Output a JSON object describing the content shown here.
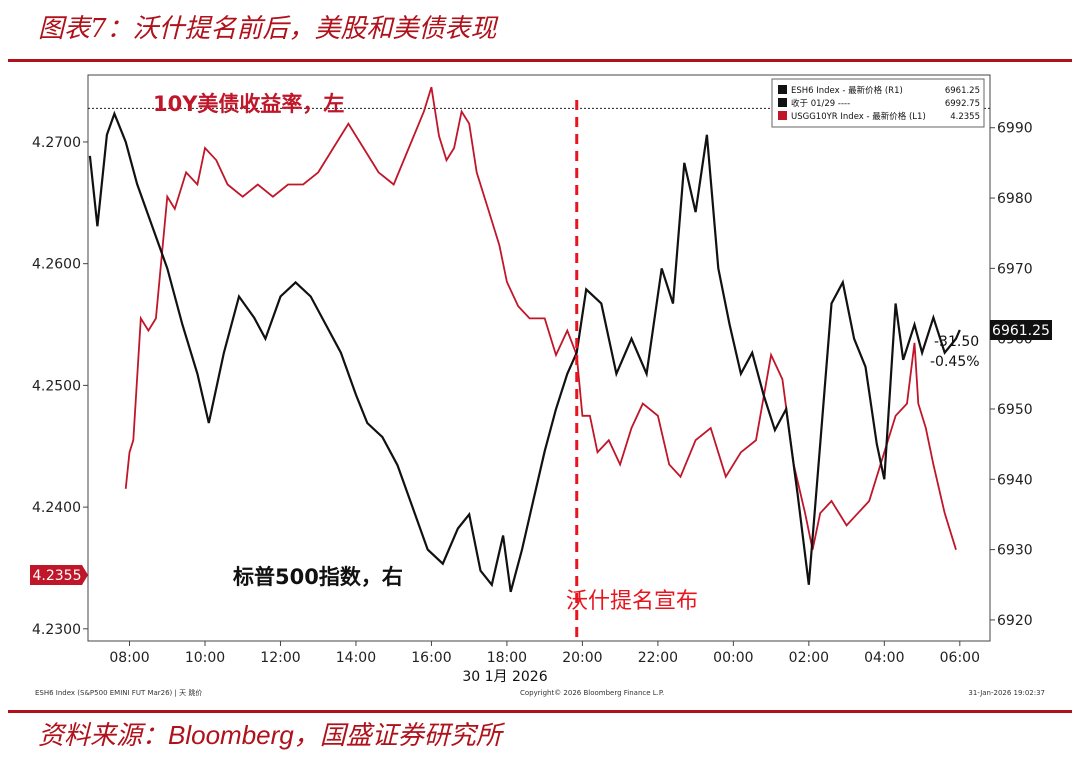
{
  "header": {
    "title": "图表7：沃什提名前后，美股和美债表现"
  },
  "footer": {
    "source_prefix": "资料来源：",
    "source_brand": "Bloomberg",
    "source_suffix": "，国盛证券研究所",
    "bloomberg_left": "ESH6 Index (S&P500 EMINI FUT Mar26) | 天 跳价",
    "bloomberg_mid": "Copyright© 2026 Bloomberg Finance L.P.",
    "bloomberg_right": "31-Jan-2026 19:02:37"
  },
  "legend": {
    "rows": [
      {
        "label": "ESH6 Index - 最新价格 (R1)",
        "value": "6961.25",
        "color": "#111111"
      },
      {
        "label": "收于 01/29 ----",
        "value": "6992.75",
        "color": "#111111"
      },
      {
        "label": "USGG10YR Index - 最新价格 (L1)",
        "value": "4.2355",
        "color": "#c0162a"
      }
    ]
  },
  "annotations": {
    "yield_label": "10Y美债收益率，左",
    "spx_label": "标普500指数，右",
    "event_label": "沃什提名宣布",
    "change_points": "-31.50",
    "change_pct": "-0.45%",
    "last_right": "6961.25",
    "last_left": "4.2355"
  },
  "colors": {
    "yield": "#c0162a",
    "spx": "#111111",
    "event": "#e8141e",
    "title": "#b0121b"
  },
  "chart_data": {
    "type": "line",
    "title": "",
    "xlabel": "30 1月 2026",
    "x_ticks": [
      "08:00",
      "10:00",
      "12:00",
      "14:00",
      "16:00",
      "18:00",
      "20:00",
      "22:00",
      "00:00",
      "02:00",
      "04:00",
      "06:00"
    ],
    "x_tick_hours": [
      8,
      10,
      12,
      14,
      16,
      18,
      20,
      22,
      24,
      26,
      28,
      30
    ],
    "x_range_hours": [
      6.9,
      30.8
    ],
    "event_hour": 19.85,
    "y_left": {
      "label": "",
      "range": [
        4.229,
        4.2755
      ],
      "ticks": [
        "4.2300",
        "4.2400",
        "4.2500",
        "4.2600",
        "4.2700"
      ],
      "tick_values": [
        4.23,
        4.24,
        4.25,
        4.26,
        4.27
      ]
    },
    "y_right": {
      "label": "",
      "range": [
        6917,
        6997.5
      ],
      "ticks": [
        "6920",
        "6930",
        "6940",
        "6950",
        "6960",
        "6970",
        "6980",
        "6990"
      ],
      "tick_values": [
        6920,
        6930,
        6940,
        6950,
        6960,
        6970,
        6980,
        6990
      ],
      "prev_close": 6992.75
    },
    "series": [
      {
        "name": "USGG10YR Index",
        "axis": "left",
        "x": [
          7.9,
          8.0,
          8.1,
          8.3,
          8.5,
          8.7,
          9.0,
          9.2,
          9.5,
          9.8,
          10.0,
          10.3,
          10.6,
          11.0,
          11.4,
          11.8,
          12.2,
          12.6,
          13.0,
          13.4,
          13.8,
          14.2,
          14.6,
          15.0,
          15.4,
          15.8,
          16.0,
          16.2,
          16.4,
          16.6,
          16.8,
          17.0,
          17.2,
          17.5,
          17.8,
          18.0,
          18.3,
          18.6,
          19.0,
          19.3,
          19.6,
          19.85,
          20.0,
          20.2,
          20.4,
          20.7,
          21.0,
          21.3,
          21.6,
          22.0,
          22.3,
          22.6,
          23.0,
          23.4,
          23.8,
          24.2,
          24.6,
          25.0,
          25.3,
          25.6,
          25.9,
          26.1,
          26.3,
          26.6,
          27.0,
          27.3,
          27.6,
          28.0,
          28.3,
          28.6,
          28.8,
          28.9,
          29.1,
          29.3,
          29.6,
          29.9
        ],
        "y": [
          4.2415,
          4.2445,
          4.2455,
          4.2555,
          4.2545,
          4.2555,
          4.2655,
          4.2645,
          4.2675,
          4.2665,
          4.2695,
          4.2685,
          4.2665,
          4.2655,
          4.2665,
          4.2655,
          4.2665,
          4.2665,
          4.2675,
          4.2695,
          4.2715,
          4.2695,
          4.2675,
          4.2665,
          4.2695,
          4.2725,
          4.2745,
          4.2705,
          4.2685,
          4.2695,
          4.2725,
          4.2715,
          4.2675,
          4.2645,
          4.2615,
          4.2585,
          4.2565,
          4.2555,
          4.2555,
          4.2525,
          4.2545,
          4.2525,
          4.2475,
          4.2475,
          4.2445,
          4.2455,
          4.2435,
          4.2465,
          4.2485,
          4.2475,
          4.2435,
          4.2425,
          4.2455,
          4.2465,
          4.2425,
          4.2445,
          4.2455,
          4.2525,
          4.2505,
          4.2435,
          4.2395,
          4.2365,
          4.2395,
          4.2405,
          4.2385,
          4.2395,
          4.2405,
          4.2445,
          4.2475,
          4.2485,
          4.2535,
          4.2485,
          4.2465,
          4.2435,
          4.2395,
          4.2365
        ]
      },
      {
        "name": "ESH6 Index",
        "axis": "right",
        "x": [
          6.95,
          7.15,
          7.4,
          7.6,
          7.9,
          8.2,
          8.6,
          9.0,
          9.4,
          9.8,
          10.1,
          10.5,
          10.9,
          11.3,
          11.6,
          12.0,
          12.4,
          12.8,
          13.2,
          13.6,
          14.0,
          14.3,
          14.7,
          15.1,
          15.5,
          15.9,
          16.3,
          16.7,
          17.0,
          17.3,
          17.6,
          17.9,
          18.1,
          18.4,
          18.7,
          19.0,
          19.3,
          19.6,
          19.85,
          20.1,
          20.5,
          20.9,
          21.3,
          21.7,
          22.1,
          22.4,
          22.7,
          23.0,
          23.3,
          23.6,
          23.9,
          24.2,
          24.5,
          24.8,
          25.1,
          25.4,
          25.7,
          26.0,
          26.3,
          26.6,
          26.9,
          27.2,
          27.5,
          27.8,
          28.0,
          28.3,
          28.5,
          28.8,
          29.0,
          29.3,
          29.6,
          29.9,
          30.0
        ],
        "y": [
          6986,
          6976,
          6989,
          6992,
          6988,
          6982,
          6976,
          6970,
          6962,
          6955,
          6948,
          6958,
          6966,
          6963,
          6960,
          6966,
          6968,
          6966,
          6962,
          6958,
          6952,
          6948,
          6946,
          6942,
          6936,
          6930,
          6928,
          6933,
          6935,
          6927,
          6925,
          6932,
          6924,
          6930,
          6937,
          6944,
          6950,
          6955,
          6958,
          6967,
          6965,
          6955,
          6960,
          6955,
          6970,
          6965,
          6985,
          6978,
          6989,
          6970,
          6962,
          6955,
          6958,
          6952,
          6947,
          6950,
          6938,
          6925,
          6945,
          6965,
          6968,
          6960,
          6956,
          6945,
          6940,
          6965,
          6957,
          6962,
          6958,
          6963,
          6958,
          6960,
          6961.25
        ]
      }
    ]
  }
}
